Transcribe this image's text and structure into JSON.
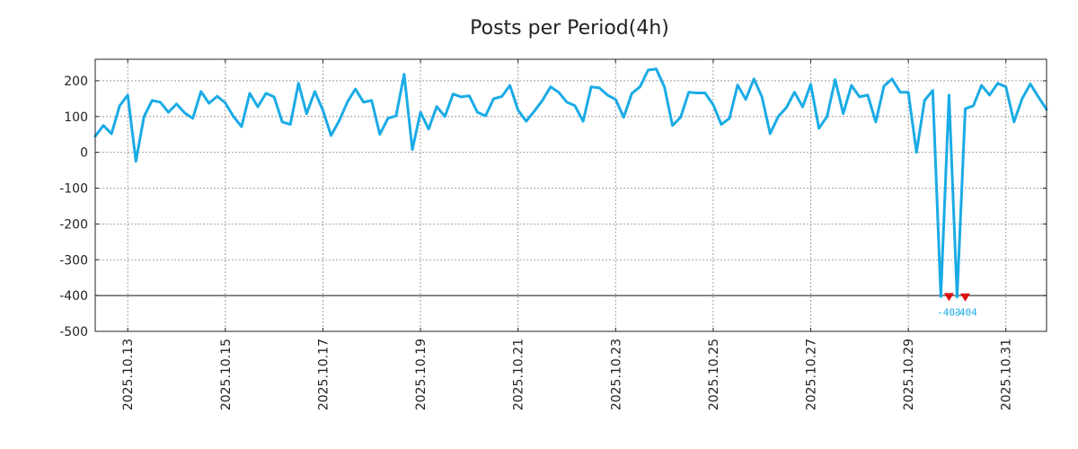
{
  "chart_data": {
    "type": "line",
    "title": "Posts per Period(4h)",
    "xlabel": "",
    "ylabel": "",
    "ylim": [
      -500,
      260
    ],
    "yticks": [
      200,
      100,
      0,
      -100,
      -200,
      -300,
      -400,
      -500
    ],
    "ytick_labels": [
      "200",
      "100",
      "0",
      "-100",
      "-200",
      "-300",
      "-400",
      "-500"
    ],
    "xlim": [
      "2025-10-12 08:00",
      "2025-10-31 20:00"
    ],
    "xticks": [
      "2025-10-13",
      "2025-10-15",
      "2025-10-17",
      "2025-10-19",
      "2025-10-21",
      "2025-10-23",
      "2025-10-25",
      "2025-10-27",
      "2025-10-29",
      "2025-10-31"
    ],
    "xtick_labels": [
      "2025.10.13",
      "2025.10.15",
      "2025.10.17",
      "2025.10.19",
      "2025.10.21",
      "2025.10.23",
      "2025.10.25",
      "2025.10.27",
      "2025.10.29",
      "2025.10.31"
    ],
    "grid": true,
    "reference_line": -400,
    "period_hours": 4,
    "series": [
      {
        "color": "#1aabe6",
        "start": "2025-10-12 08:00",
        "values": [
          45,
          75,
          52,
          130,
          160,
          -25,
          100,
          145,
          140,
          112,
          135,
          110,
          95,
          170,
          137,
          157,
          138,
          100,
          72,
          165,
          127,
          165,
          155,
          85,
          78,
          193,
          108,
          170,
          118,
          47,
          88,
          140,
          177,
          140,
          145,
          50,
          95,
          102,
          218,
          8,
          112,
          65,
          128,
          100,
          163,
          155,
          158,
          112,
          102,
          150,
          156,
          187,
          118,
          87,
          115,
          145,
          183,
          168,
          140,
          130,
          87,
          183,
          180,
          160,
          148,
          98,
          165,
          183,
          230,
          233,
          183,
          75,
          98,
          168,
          166,
          166,
          133,
          78,
          95,
          188,
          148,
          205,
          155,
          52,
          100,
          125,
          168,
          127,
          190,
          67,
          100,
          203,
          108,
          187,
          155,
          160,
          85,
          185,
          205,
          168,
          168,
          0,
          145,
          173,
          -403,
          160,
          -404,
          122,
          130,
          187,
          160,
          193,
          183,
          85,
          150,
          191,
          155,
          120
        ]
      }
    ],
    "annotations": [
      {
        "x": "2025-10-29 20:00",
        "y": -403,
        "label": "-403",
        "marker_color": "#dd1111",
        "text_color": "#1aabe6"
      },
      {
        "x": "2025-10-30 04:00",
        "y": -404,
        "label": "-404",
        "marker_color": "#dd1111",
        "text_color": "#1aabe6"
      }
    ]
  }
}
